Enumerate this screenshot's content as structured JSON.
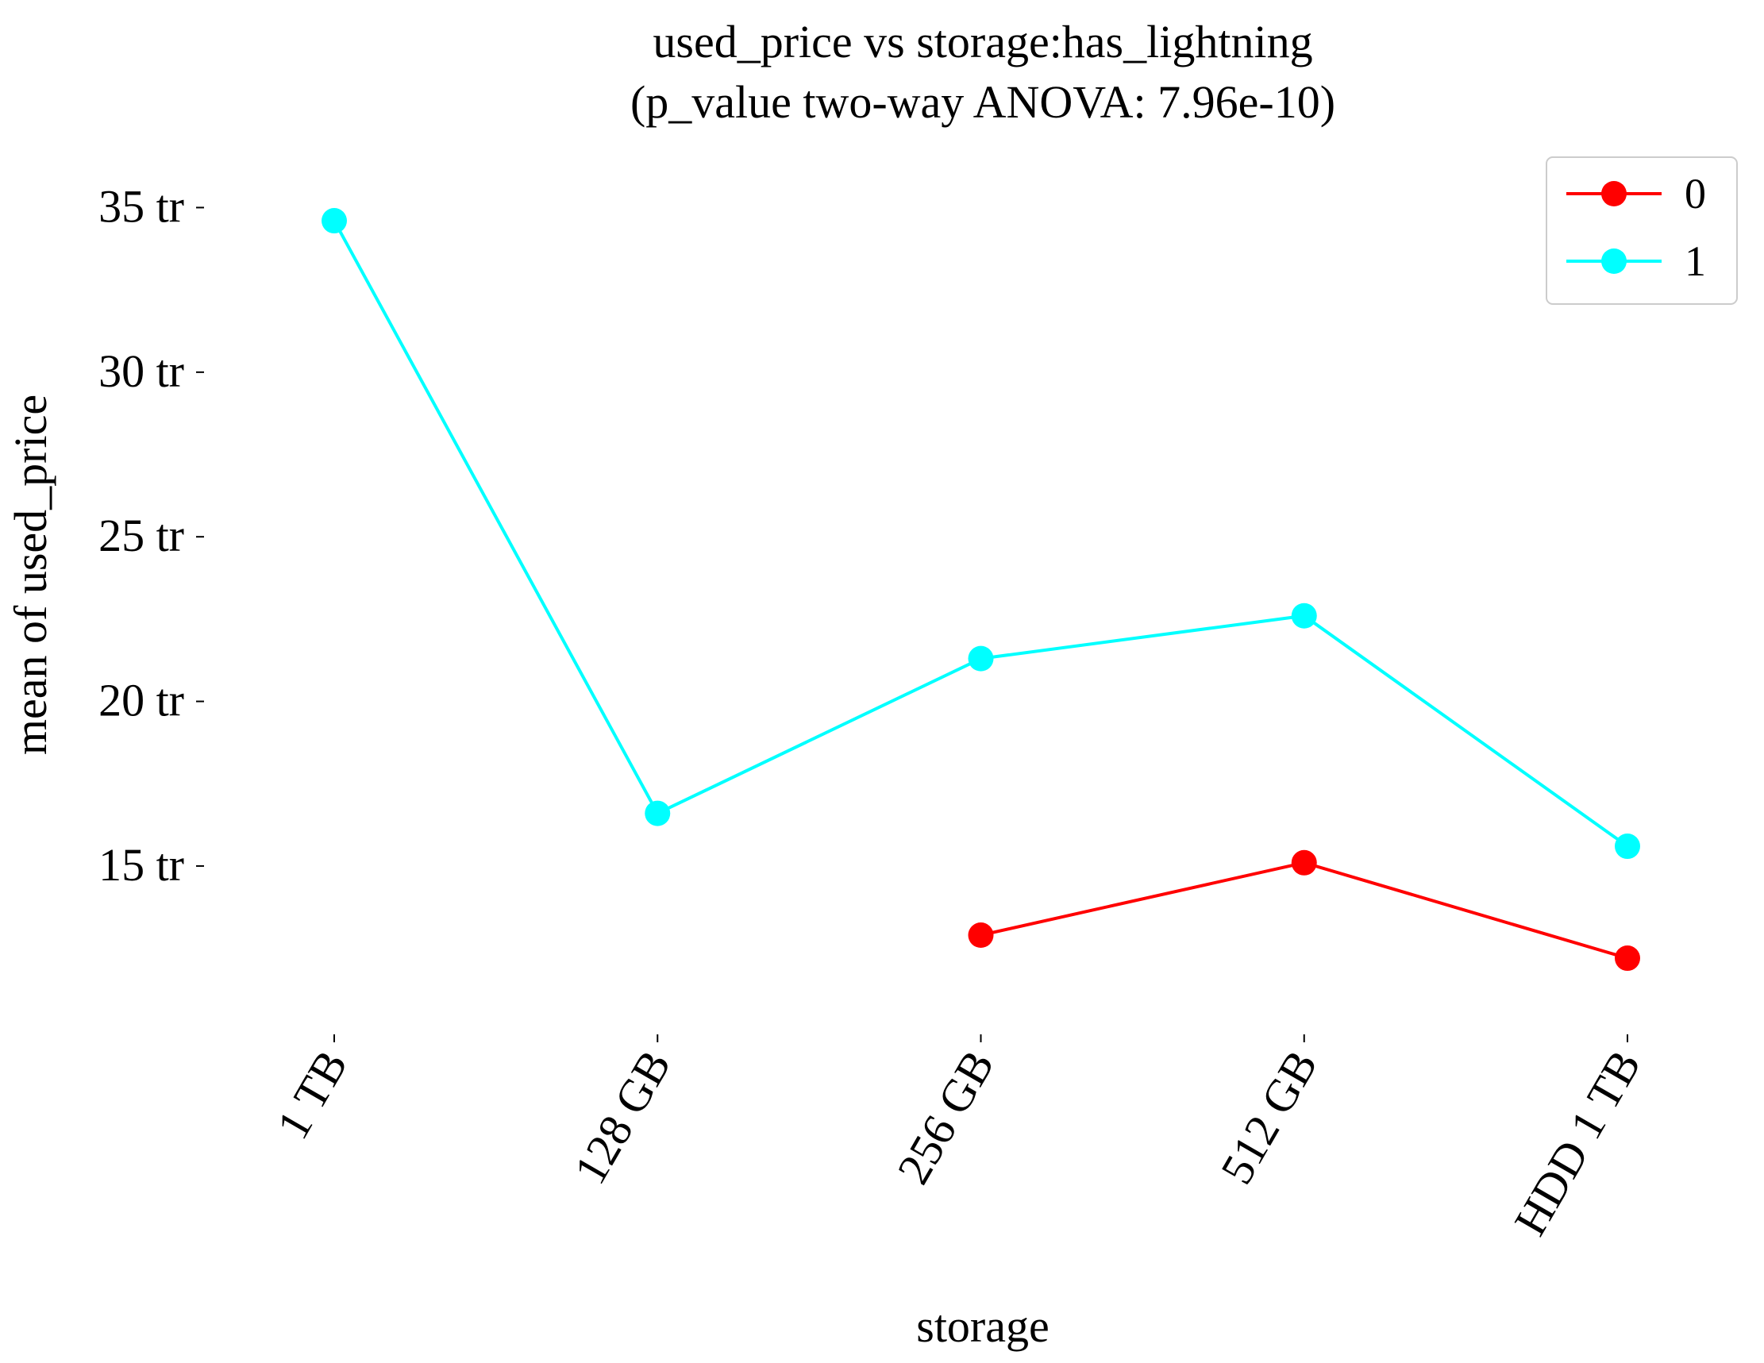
{
  "chart_data": {
    "type": "line",
    "title": "used_price vs storage:has_lightning",
    "subtitle": "(p_value two-way ANOVA: 7.96e-10)",
    "xlabel": "storage",
    "ylabel": "mean of used_price",
    "categories": [
      "1 TB",
      "128 GB",
      "256 GB",
      "512 GB",
      "HDD 1 TB"
    ],
    "ylim": [
      10.2,
      36.0
    ],
    "yticks": [
      15,
      20,
      25,
      30,
      35
    ],
    "ytick_labels": [
      "15 tr",
      "20 tr",
      "25 tr",
      "30 tr",
      "35 tr"
    ],
    "grid": false,
    "legend_position": "top-right",
    "series": [
      {
        "name": "0",
        "color": "#ff0000",
        "values": [
          null,
          null,
          12.9,
          15.1,
          12.2
        ]
      },
      {
        "name": "1",
        "color": "#00ffff",
        "values": [
          34.6,
          16.6,
          21.3,
          22.6,
          15.6
        ]
      }
    ]
  }
}
